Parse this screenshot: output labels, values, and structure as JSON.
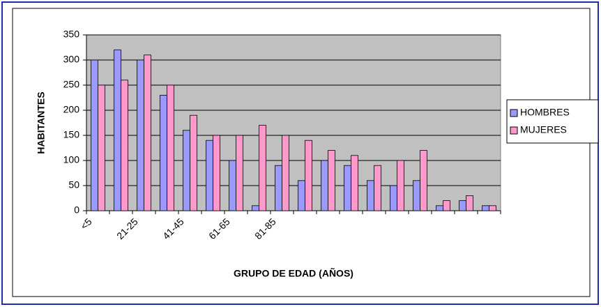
{
  "chart_data": {
    "type": "bar",
    "x_label": "GRUPO DE EDAD (AÑOS)",
    "y_label": "HABITANTES",
    "categories": [
      "<5",
      null,
      "21-25",
      null,
      "41-45",
      null,
      "61-65",
      null,
      "81-85",
      null,
      null,
      null,
      null,
      null,
      null,
      null,
      null,
      null
    ],
    "series": [
      {
        "name": "HOMBRES",
        "color": "#9999ff",
        "values": [
          300,
          320,
          300,
          230,
          160,
          140,
          100,
          10,
          90,
          60,
          100,
          90,
          60,
          50,
          60,
          10,
          20,
          10
        ]
      },
      {
        "name": "MUJERES",
        "color": "#ff99cc",
        "values": [
          250,
          260,
          310,
          250,
          190,
          150,
          150,
          170,
          150,
          140,
          120,
          110,
          90,
          100,
          120,
          20,
          30,
          10
        ]
      }
    ],
    "ylim": [
      0,
      350
    ],
    "yticks": [
      0,
      50,
      100,
      150,
      200,
      250,
      300,
      350
    ],
    "grid": true,
    "legend": "right"
  }
}
